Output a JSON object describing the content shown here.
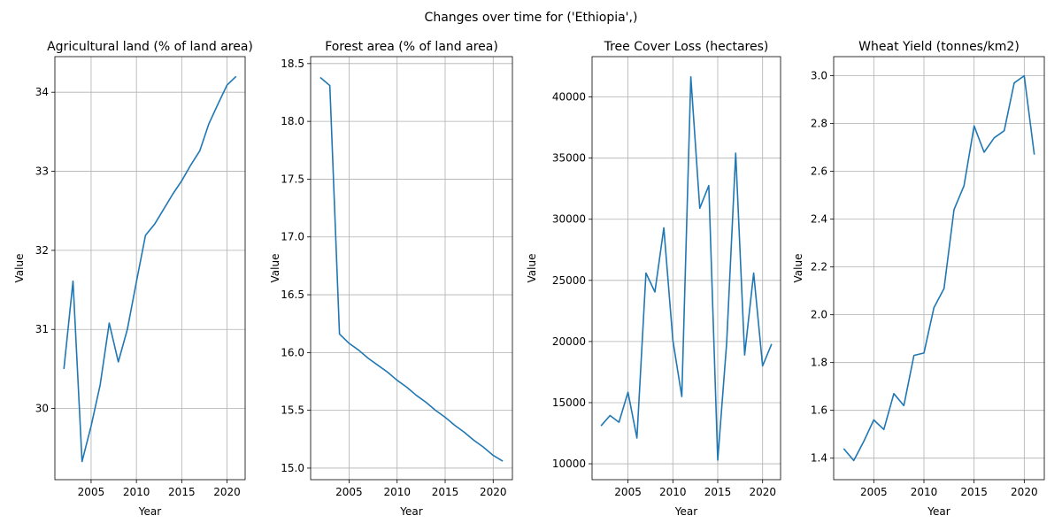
{
  "figure": {
    "suptitle": "Changes over time for ('Ethiopia',)",
    "line_color": "#1f77b4"
  },
  "chart_data": [
    {
      "type": "line",
      "title": "Agricultural land (% of land area)",
      "xlabel": "Year",
      "ylabel": "Value",
      "grid": true,
      "xlim": [
        2001,
        2022
      ],
      "ylim": [
        29.1,
        34.45
      ],
      "xticks": [
        2005,
        2010,
        2015,
        2020
      ],
      "yticks": [
        30,
        31,
        32,
        33,
        34
      ],
      "ytick_labels": [
        "30",
        "31",
        "32",
        "33",
        "34"
      ],
      "x": [
        2002,
        2003,
        2004,
        2005,
        2006,
        2007,
        2008,
        2009,
        2010,
        2011,
        2012,
        2013,
        2014,
        2015,
        2016,
        2017,
        2018,
        2019,
        2020,
        2021
      ],
      "values": [
        30.5,
        31.61,
        29.33,
        29.78,
        30.3,
        31.08,
        30.59,
        31.0,
        31.6,
        32.19,
        32.33,
        32.52,
        32.71,
        32.88,
        33.08,
        33.26,
        33.6,
        33.85,
        34.09,
        34.2
      ]
    },
    {
      "type": "line",
      "title": "Forest area (% of land area)",
      "xlabel": "Year",
      "ylabel": "Value",
      "grid": true,
      "xlim": [
        2001,
        2022
      ],
      "ylim": [
        14.9,
        18.56
      ],
      "xticks": [
        2005,
        2010,
        2015,
        2020
      ],
      "yticks": [
        15.0,
        15.5,
        16.0,
        16.5,
        17.0,
        17.5,
        18.0,
        18.5
      ],
      "ytick_labels": [
        "15.0",
        "15.5",
        "16.0",
        "16.5",
        "17.0",
        "17.5",
        "18.0",
        "18.5"
      ],
      "x": [
        2002,
        2003,
        2004,
        2005,
        2006,
        2007,
        2008,
        2009,
        2010,
        2011,
        2012,
        2013,
        2014,
        2015,
        2016,
        2017,
        2018,
        2019,
        2020,
        2021
      ],
      "values": [
        18.38,
        18.31,
        16.16,
        16.08,
        16.02,
        15.95,
        15.89,
        15.83,
        15.76,
        15.7,
        15.63,
        15.57,
        15.5,
        15.44,
        15.37,
        15.31,
        15.24,
        15.18,
        15.11,
        15.06
      ]
    },
    {
      "type": "line",
      "title": "Tree Cover Loss (hectares)",
      "xlabel": "Year",
      "ylabel": "Value",
      "grid": true,
      "xlim": [
        2001,
        2022
      ],
      "ylim": [
        8700,
        43300
      ],
      "xticks": [
        2005,
        2010,
        2015,
        2020
      ],
      "yticks": [
        10000,
        15000,
        20000,
        25000,
        30000,
        35000,
        40000
      ],
      "ytick_labels": [
        "10000",
        "15000",
        "20000",
        "25000",
        "30000",
        "35000",
        "40000"
      ],
      "x": [
        2002,
        2003,
        2004,
        2005,
        2006,
        2007,
        2008,
        2009,
        2010,
        2011,
        2012,
        2013,
        2014,
        2015,
        2016,
        2017,
        2018,
        2019,
        2020,
        2021
      ],
      "values": [
        13100,
        13950,
        13400,
        15850,
        12100,
        25600,
        24050,
        29300,
        20100,
        15500,
        41650,
        30900,
        32750,
        10300,
        19900,
        35400,
        18900,
        25600,
        18000,
        19800
      ]
    },
    {
      "type": "line",
      "title": "Wheat Yield (tonnes/km2)",
      "xlabel": "Year",
      "ylabel": "Value",
      "grid": true,
      "xlim": [
        2001,
        2022
      ],
      "ylim": [
        1.31,
        3.08
      ],
      "xticks": [
        2005,
        2010,
        2015,
        2020
      ],
      "yticks": [
        1.4,
        1.6,
        1.8,
        2.0,
        2.2,
        2.4,
        2.6,
        2.8,
        3.0
      ],
      "ytick_labels": [
        "1.4",
        "1.6",
        "1.8",
        "2.0",
        "2.2",
        "2.4",
        "2.6",
        "2.8",
        "3.0"
      ],
      "x": [
        2002,
        2003,
        2004,
        2005,
        2006,
        2007,
        2008,
        2009,
        2010,
        2011,
        2012,
        2013,
        2014,
        2015,
        2016,
        2017,
        2018,
        2019,
        2020,
        2021
      ],
      "values": [
        1.44,
        1.39,
        1.47,
        1.56,
        1.52,
        1.67,
        1.62,
        1.83,
        1.84,
        2.03,
        2.11,
        2.44,
        2.54,
        2.79,
        2.68,
        2.74,
        2.77,
        2.97,
        3.0,
        2.67
      ]
    }
  ]
}
